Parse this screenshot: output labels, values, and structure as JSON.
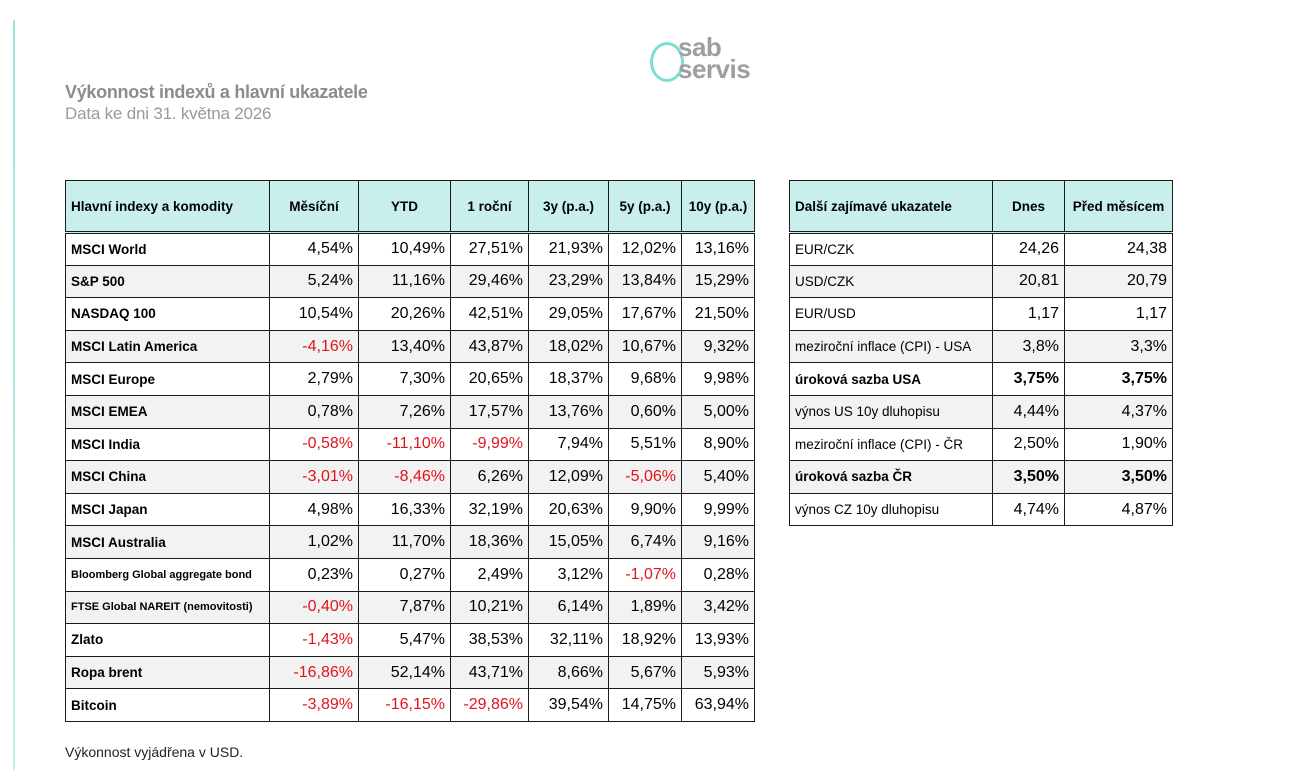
{
  "header": {
    "title": "Výkonnost indexů a hlavní ukazatele",
    "subtitle": "Data ke dni 31. května 2026"
  },
  "logo": {
    "line1": "sab",
    "line2": "servis"
  },
  "indices_table": {
    "columns": [
      "Hlavní indexy a komodity",
      "Měsíční",
      "YTD",
      "1 roční",
      "3y (p.a.)",
      "5y (p.a.)",
      "10y (p.a.)"
    ],
    "rows": [
      {
        "name": "MSCI World",
        "values": [
          "4,54%",
          "10,49%",
          "27,51%",
          "21,93%",
          "12,02%",
          "13,16%"
        ]
      },
      {
        "name": "S&P 500",
        "values": [
          "5,24%",
          "11,16%",
          "29,46%",
          "23,29%",
          "13,84%",
          "15,29%"
        ]
      },
      {
        "name": "NASDAQ 100",
        "values": [
          "10,54%",
          "20,26%",
          "42,51%",
          "29,05%",
          "17,67%",
          "21,50%"
        ]
      },
      {
        "name": "MSCI Latin America",
        "values": [
          "-4,16%",
          "13,40%",
          "43,87%",
          "18,02%",
          "10,67%",
          "9,32%"
        ]
      },
      {
        "name": "MSCI Europe",
        "values": [
          "2,79%",
          "7,30%",
          "20,65%",
          "18,37%",
          "9,68%",
          "9,98%"
        ]
      },
      {
        "name": "MSCI EMEA",
        "values": [
          "0,78%",
          "7,26%",
          "17,57%",
          "13,76%",
          "0,60%",
          "5,00%"
        ]
      },
      {
        "name": "MSCI India",
        "values": [
          "-0,58%",
          "-11,10%",
          "-9,99%",
          "7,94%",
          "5,51%",
          "8,90%"
        ]
      },
      {
        "name": "MSCI China",
        "values": [
          "-3,01%",
          "-8,46%",
          "6,26%",
          "12,09%",
          "-5,06%",
          "5,40%"
        ]
      },
      {
        "name": "MSCI Japan",
        "values": [
          "4,98%",
          "16,33%",
          "32,19%",
          "20,63%",
          "9,90%",
          "9,99%"
        ]
      },
      {
        "name": "MSCI Australia",
        "values": [
          "1,02%",
          "11,70%",
          "18,36%",
          "15,05%",
          "6,74%",
          "9,16%"
        ]
      },
      {
        "name": "Bloomberg Global aggregate bond",
        "values": [
          "0,23%",
          "0,27%",
          "2,49%",
          "3,12%",
          "-1,07%",
          "0,28%"
        ]
      },
      {
        "name": "FTSE Global NAREIT (nemovitosti)",
        "values": [
          "-0,40%",
          "7,87%",
          "10,21%",
          "6,14%",
          "1,89%",
          "3,42%"
        ]
      },
      {
        "name": "Zlato",
        "values": [
          "-1,43%",
          "5,47%",
          "38,53%",
          "32,11%",
          "18,92%",
          "13,93%"
        ]
      },
      {
        "name": "Ropa brent",
        "values": [
          "-16,86%",
          "52,14%",
          "43,71%",
          "8,66%",
          "5,67%",
          "5,93%"
        ]
      },
      {
        "name": "Bitcoin",
        "values": [
          "-3,89%",
          "-16,15%",
          "-29,86%",
          "39,54%",
          "14,75%",
          "63,94%"
        ]
      }
    ]
  },
  "other_table": {
    "columns": [
      "Další zajímavé ukazatele",
      "Dnes",
      "Před měsícem"
    ],
    "rows": [
      {
        "name": "EUR/CZK",
        "values": [
          "24,26",
          "24,38"
        ]
      },
      {
        "name": "USD/CZK",
        "values": [
          "20,81",
          "20,79"
        ]
      },
      {
        "name": "EUR/USD",
        "values": [
          "1,17",
          "1,17"
        ]
      },
      {
        "name": "meziroční inflace (CPI) - USA",
        "values": [
          "3,8%",
          "3,3%"
        ]
      },
      {
        "name": "úroková sazba USA",
        "values": [
          "3,75%",
          "3,75%"
        ]
      },
      {
        "name": "výnos US 10y dluhopisu",
        "values": [
          "4,44%",
          "4,37%"
        ]
      },
      {
        "name": "meziroční inflace (CPI) - ČR",
        "values": [
          "2,50%",
          "1,90%"
        ]
      },
      {
        "name": "úroková sazba ČR",
        "values": [
          "3,50%",
          "3,50%"
        ]
      },
      {
        "name": "výnos CZ 10y dluhopisu",
        "values": [
          "4,74%",
          "4,87%"
        ]
      }
    ]
  },
  "footnote": "Výkonnost vyjádřena v USD.",
  "colors": {
    "header_bg": "#c8efec",
    "negative": "#e0141b",
    "accent": "#7fdcd4"
  }
}
